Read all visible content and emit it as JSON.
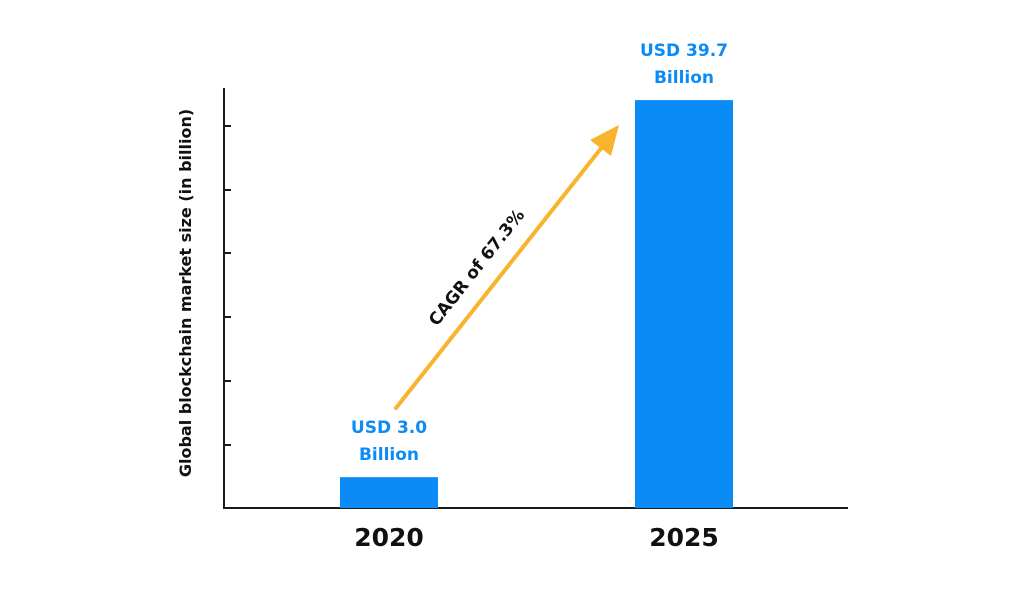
{
  "chart_data": {
    "type": "bar",
    "categories": [
      "2020",
      "2025"
    ],
    "values": [
      3.0,
      39.7
    ],
    "value_labels": [
      [
        "USD 3.0",
        "Billion"
      ],
      [
        "USD 39.7",
        "Billion"
      ]
    ],
    "ylabel": "Global blockchain market size (in billion)",
    "xlabel": "",
    "ylim": [
      0,
      40
    ],
    "y_tick_count": 7,
    "show_y_tick_labels": false,
    "grid": false,
    "annotation": {
      "text": "CAGR of 67.3%",
      "type": "arrow",
      "from_category": "2020",
      "to_category": "2025"
    }
  },
  "colors": {
    "bar": "#0a8bf5",
    "arrow": "#f7b42c",
    "axis": "#1a1a1a",
    "text": "#111111"
  }
}
